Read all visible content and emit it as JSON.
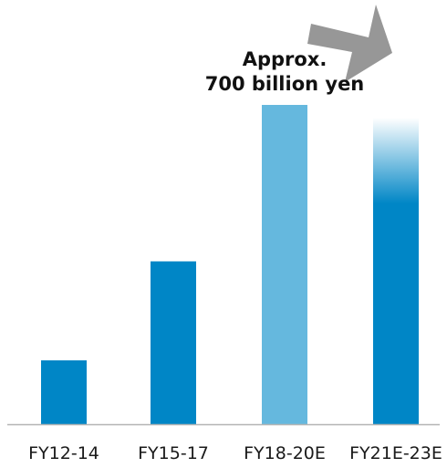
{
  "chart_data": {
    "type": "bar",
    "title": "",
    "xlabel": "",
    "ylabel": "",
    "categories": [
      "FY12-14",
      "FY15-17",
      "FY18-20E",
      "FY21E-23E"
    ],
    "values": [
      20,
      51,
      100,
      96
    ],
    "ylim": [
      0,
      100
    ],
    "grid": false,
    "legend": "none",
    "annotations": [
      {
        "category": "FY18-20E",
        "lines": [
          "Approx.",
          "700 billion yen"
        ]
      }
    ],
    "trend_arrow": "up-right",
    "colors": {
      "bar": "#0086c6",
      "highlight_bar": "#65b8de",
      "fade_bar_top": "#ffffff",
      "arrow": "#979797",
      "baseline": "#b5b5b5",
      "text": "#111111"
    },
    "bar_styles": [
      "solid",
      "solid",
      "highlight",
      "gradient-fade"
    ]
  }
}
